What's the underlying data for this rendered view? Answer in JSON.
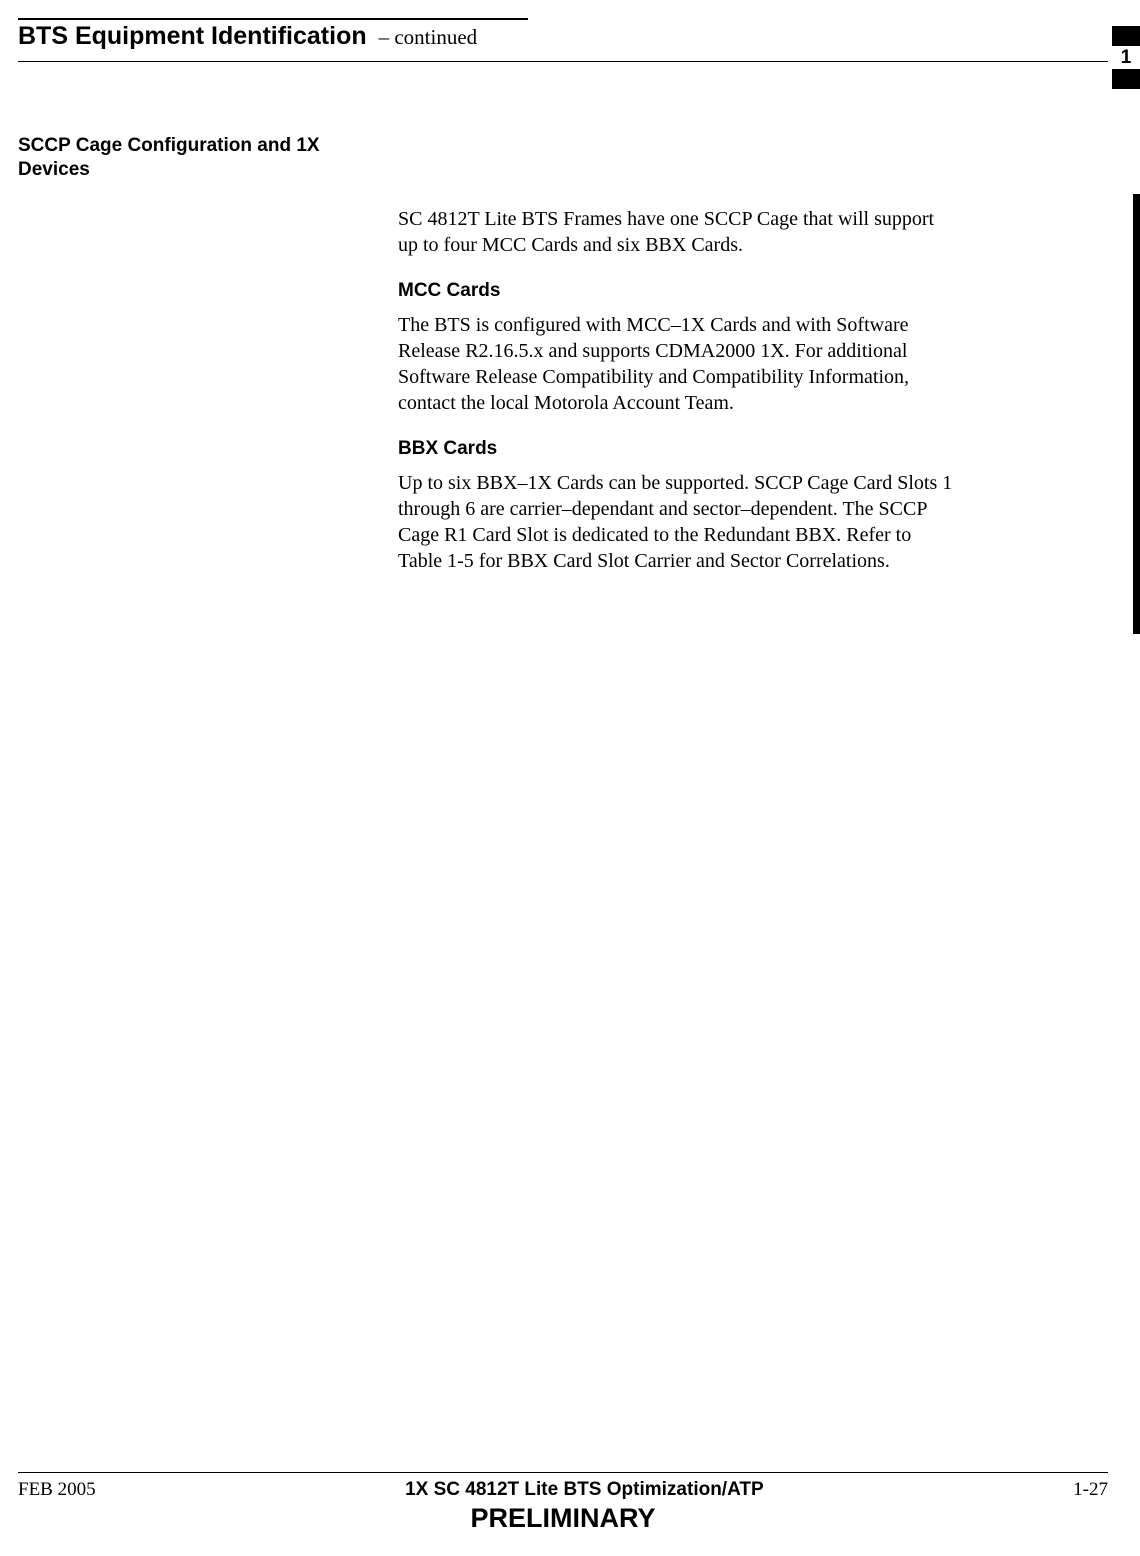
{
  "header": {
    "title": "BTS Equipment Identification",
    "continued": "– continued"
  },
  "tab": {
    "number": "1"
  },
  "section": {
    "heading": "SCCP Cage Configuration and 1X Devices",
    "intro": "SC 4812T Lite BTS Frames have one SCCP Cage that will support up to four MCC Cards and six BBX Cards.",
    "mcc": {
      "heading": "MCC Cards",
      "body": "The BTS is configured with MCC–1X Cards and with Software Release R2.16.5.x and supports CDMA2000 1X. For additional Software Release Compatibility and Compatibility Information, contact the local Motorola Account Team."
    },
    "bbx": {
      "heading": "BBX Cards",
      "body": "Up to six BBX–1X Cards can be supported. SCCP Cage Card Slots 1 through 6 are carrier–dependant and sector–dependent.  The SCCP Cage R1 Card Slot is dedicated to the Redundant BBX. Refer to Table 1-5 for BBX Card Slot Carrier and Sector Correlations."
    }
  },
  "footer": {
    "left": "FEB 2005",
    "center": "1X SC 4812T Lite BTS Optimization/ATP",
    "right": "1-27",
    "preliminary": "PRELIMINARY"
  }
}
